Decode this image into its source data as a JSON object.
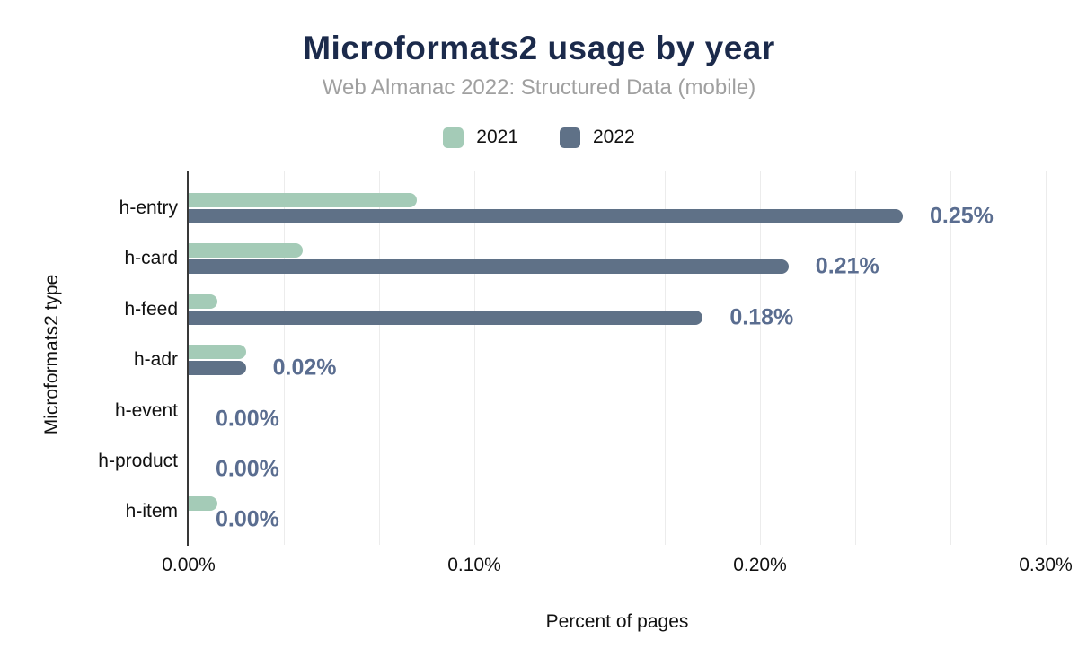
{
  "chart_data": {
    "type": "bar",
    "orientation": "horizontal",
    "title": "Microformats2 usage by year",
    "subtitle": "Web Almanac 2022: Structured Data (mobile)",
    "xlabel": "Percent of pages",
    "ylabel": "Microformats2 type",
    "categories": [
      "h-entry",
      "h-card",
      "h-feed",
      "h-adr",
      "h-event",
      "h-product",
      "h-item"
    ],
    "series": [
      {
        "name": "2021",
        "color": "#a4cbb7",
        "values": [
          0.08,
          0.04,
          0.01,
          0.02,
          0,
          0,
          0.01
        ]
      },
      {
        "name": "2022",
        "color": "#5f7187",
        "values": [
          0.25,
          0.21,
          0.18,
          0.02,
          0,
          0,
          0
        ]
      }
    ],
    "data_labels": [
      "0.25%",
      "0.21%",
      "0.18%",
      "0.02%",
      "0.00%",
      "0.00%",
      "0.00%"
    ],
    "data_label_series": "2022",
    "x_ticks": [
      {
        "label": "0.00%",
        "value": 0
      },
      {
        "label": "0.10%",
        "value": 0.1
      },
      {
        "label": "0.20%",
        "value": 0.2
      },
      {
        "label": "0.30%",
        "value": 0.3
      }
    ],
    "xlim": [
      0,
      0.3
    ],
    "minor_gridline_step": 0.0333333,
    "grid": true,
    "legend_position": "top",
    "colors": {
      "title": "#1b2a4b",
      "subtitle": "#a0a0a0",
      "data_label": "#5a6d90",
      "axis_line": "#383838",
      "gridline": "#ececec"
    }
  }
}
